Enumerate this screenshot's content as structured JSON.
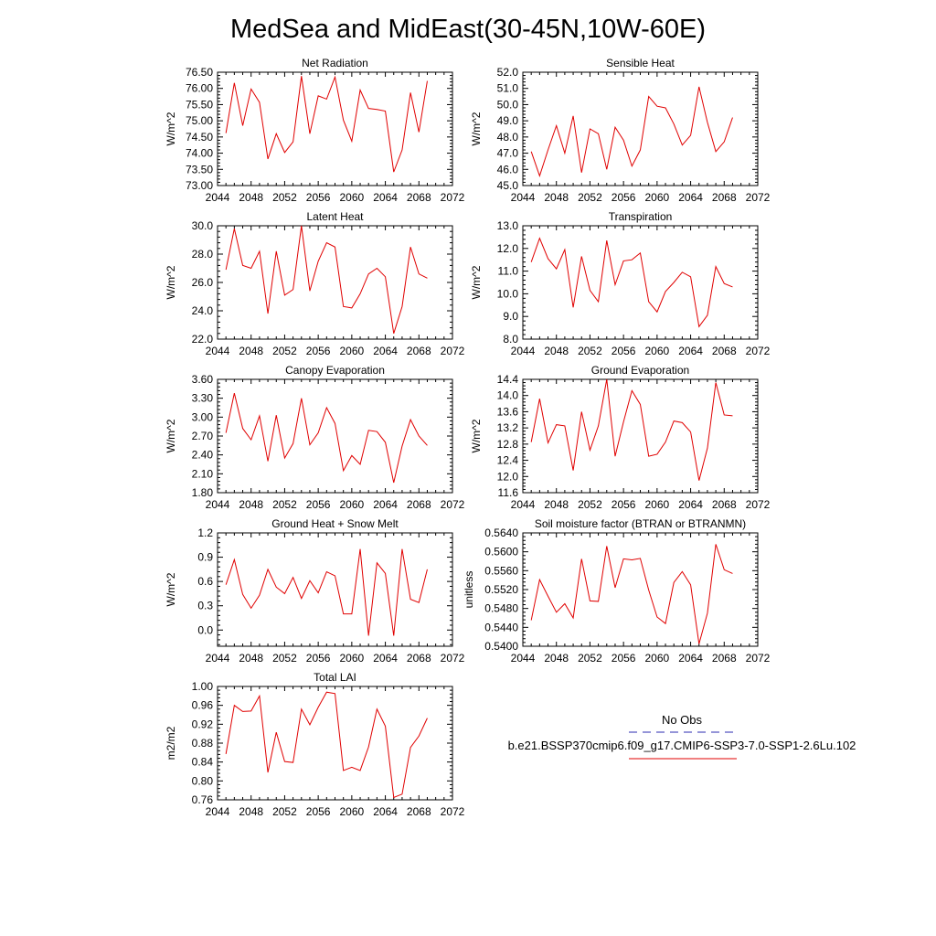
{
  "figure": {
    "title": "MedSea and MidEast(30-45N,10W-60E)"
  },
  "legend": {
    "obs_label": "No Obs",
    "model_label": "b.e21.BSSP370cmip6.f09_g17.CMIP6-SSP3-7.0-SSP1-2.6Lu.102",
    "obs_color": "#2b2bb0",
    "model_color": "#e00000"
  },
  "chart_data": [
    {
      "type": "line",
      "title": "Net Radiation",
      "ylabel": "W/m^2",
      "x": [
        2045,
        2046,
        2047,
        2048,
        2049,
        2050,
        2051,
        2052,
        2053,
        2054,
        2055,
        2056,
        2057,
        2058,
        2059,
        2060,
        2061,
        2062,
        2063,
        2064,
        2065,
        2066,
        2067,
        2068,
        2069
      ],
      "xlim": [
        2044,
        2072
      ],
      "xticks": [
        "2044",
        "2048",
        "2052",
        "2056",
        "2060",
        "2064",
        "2068",
        "2072"
      ],
      "ylim": [
        73.0,
        76.5
      ],
      "yticks": [
        "73.00",
        "73.50",
        "74.00",
        "74.50",
        "75.00",
        "75.50",
        "76.00",
        "76.50"
      ],
      "series": [
        {
          "values": [
            74.62,
            76.17,
            74.85,
            75.98,
            75.57,
            73.82,
            74.6,
            74.02,
            74.35,
            76.38,
            74.6,
            75.77,
            75.67,
            76.35,
            75.02,
            74.37,
            75.95,
            75.38,
            75.35,
            75.3,
            73.42,
            74.1,
            75.87,
            74.65,
            76.23
          ]
        }
      ]
    },
    {
      "type": "line",
      "title": "Sensible Heat",
      "ylabel": "W/m^2",
      "x": [
        2045,
        2046,
        2047,
        2048,
        2049,
        2050,
        2051,
        2052,
        2053,
        2054,
        2055,
        2056,
        2057,
        2058,
        2059,
        2060,
        2061,
        2062,
        2063,
        2064,
        2065,
        2066,
        2067,
        2068,
        2069
      ],
      "xlim": [
        2044,
        2072
      ],
      "xticks": [
        "2044",
        "2048",
        "2052",
        "2056",
        "2060",
        "2064",
        "2068",
        "2072"
      ],
      "ylim": [
        45.0,
        52.0
      ],
      "yticks": [
        "45.0",
        "46.0",
        "47.0",
        "48.0",
        "49.0",
        "50.0",
        "51.0",
        "52.0"
      ],
      "series": [
        {
          "values": [
            47.1,
            45.6,
            47.2,
            48.7,
            47.0,
            49.3,
            45.8,
            48.5,
            48.2,
            46.0,
            48.6,
            47.8,
            46.2,
            47.2,
            50.5,
            49.9,
            49.8,
            48.8,
            47.5,
            48.1,
            51.1,
            48.9,
            47.1,
            47.7,
            49.2
          ]
        }
      ]
    },
    {
      "type": "line",
      "title": "Latent Heat",
      "ylabel": "W/m^2",
      "x": [
        2045,
        2046,
        2047,
        2048,
        2049,
        2050,
        2051,
        2052,
        2053,
        2054,
        2055,
        2056,
        2057,
        2058,
        2059,
        2060,
        2061,
        2062,
        2063,
        2064,
        2065,
        2066,
        2067,
        2068,
        2069
      ],
      "xlim": [
        2044,
        2072
      ],
      "xticks": [
        "2044",
        "2048",
        "2052",
        "2056",
        "2060",
        "2064",
        "2068",
        "2072"
      ],
      "ylim": [
        22.0,
        30.0
      ],
      "yticks": [
        "22.0",
        "24.0",
        "26.0",
        "28.0",
        "30.0"
      ],
      "series": [
        {
          "values": [
            26.9,
            29.8,
            27.2,
            27.0,
            28.2,
            23.8,
            28.2,
            25.1,
            25.5,
            30.0,
            25.4,
            27.5,
            28.8,
            28.5,
            24.3,
            24.2,
            25.2,
            26.6,
            27.0,
            26.4,
            22.4,
            24.3,
            28.5,
            26.6,
            26.3
          ]
        }
      ]
    },
    {
      "type": "line",
      "title": "Transpiration",
      "ylabel": "W/m^2",
      "x": [
        2045,
        2046,
        2047,
        2048,
        2049,
        2050,
        2051,
        2052,
        2053,
        2054,
        2055,
        2056,
        2057,
        2058,
        2059,
        2060,
        2061,
        2062,
        2063,
        2064,
        2065,
        2066,
        2067,
        2068,
        2069
      ],
      "xlim": [
        2044,
        2072
      ],
      "xticks": [
        "2044",
        "2048",
        "2052",
        "2056",
        "2060",
        "2064",
        "2068",
        "2072"
      ],
      "ylim": [
        8.0,
        13.0
      ],
      "yticks": [
        "8.0",
        "9.0",
        "10.0",
        "11.0",
        "12.0",
        "13.0"
      ],
      "series": [
        {
          "values": [
            11.4,
            12.45,
            11.55,
            11.1,
            11.95,
            9.4,
            11.65,
            10.15,
            9.65,
            12.35,
            10.4,
            11.45,
            11.5,
            11.8,
            9.65,
            9.2,
            10.1,
            10.5,
            10.95,
            10.75,
            8.55,
            9.05,
            11.2,
            10.45,
            10.3
          ]
        }
      ]
    },
    {
      "type": "line",
      "title": "Canopy Evaporation",
      "ylabel": "W/m^2",
      "x": [
        2045,
        2046,
        2047,
        2048,
        2049,
        2050,
        2051,
        2052,
        2053,
        2054,
        2055,
        2056,
        2057,
        2058,
        2059,
        2060,
        2061,
        2062,
        2063,
        2064,
        2065,
        2066,
        2067,
        2068,
        2069
      ],
      "xlim": [
        2044,
        2072
      ],
      "xticks": [
        "2044",
        "2048",
        "2052",
        "2056",
        "2060",
        "2064",
        "2068",
        "2072"
      ],
      "ylim": [
        1.8,
        3.6
      ],
      "yticks": [
        "1.80",
        "2.10",
        "2.40",
        "2.70",
        "3.00",
        "3.30",
        "3.60"
      ],
      "series": [
        {
          "values": [
            2.75,
            3.38,
            2.82,
            2.64,
            3.02,
            2.3,
            3.03,
            2.35,
            2.58,
            3.3,
            2.56,
            2.75,
            3.15,
            2.9,
            2.15,
            2.39,
            2.25,
            2.79,
            2.77,
            2.6,
            1.96,
            2.54,
            2.96,
            2.7,
            2.55
          ]
        }
      ]
    },
    {
      "type": "line",
      "title": "Ground Evaporation",
      "ylabel": "W/m^2",
      "x": [
        2045,
        2046,
        2047,
        2048,
        2049,
        2050,
        2051,
        2052,
        2053,
        2054,
        2055,
        2056,
        2057,
        2058,
        2059,
        2060,
        2061,
        2062,
        2063,
        2064,
        2065,
        2066,
        2067,
        2068,
        2069
      ],
      "xlim": [
        2044,
        2072
      ],
      "xticks": [
        "2044",
        "2048",
        "2052",
        "2056",
        "2060",
        "2064",
        "2068",
        "2072"
      ],
      "ylim": [
        11.6,
        14.4
      ],
      "yticks": [
        "11.6",
        "12.0",
        "12.4",
        "12.8",
        "13.2",
        "13.6",
        "14.0",
        "14.4"
      ],
      "series": [
        {
          "values": [
            12.85,
            13.92,
            12.83,
            13.28,
            13.25,
            12.15,
            13.6,
            12.65,
            13.25,
            14.4,
            12.5,
            13.35,
            14.12,
            13.78,
            12.5,
            12.55,
            12.85,
            13.37,
            13.33,
            13.1,
            11.9,
            12.7,
            14.32,
            13.52,
            13.5
          ]
        }
      ]
    },
    {
      "type": "line",
      "title": "Ground Heat + Snow Melt",
      "ylabel": "W/m^2",
      "x": [
        2045,
        2046,
        2047,
        2048,
        2049,
        2050,
        2051,
        2052,
        2053,
        2054,
        2055,
        2056,
        2057,
        2058,
        2059,
        2060,
        2061,
        2062,
        2063,
        2064,
        2065,
        2066,
        2067,
        2068,
        2069
      ],
      "xlim": [
        2044,
        2072
      ],
      "xticks": [
        "2044",
        "2048",
        "2052",
        "2056",
        "2060",
        "2064",
        "2068",
        "2072"
      ],
      "ylim": [
        -0.2,
        1.2
      ],
      "yticks": [
        "0.0",
        "0.3",
        "0.6",
        "0.9",
        "1.2"
      ],
      "series": [
        {
          "values": [
            0.56,
            0.87,
            0.44,
            0.27,
            0.43,
            0.75,
            0.53,
            0.45,
            0.65,
            0.39,
            0.61,
            0.46,
            0.72,
            0.67,
            0.2,
            0.2,
            1.0,
            -0.07,
            0.83,
            0.7,
            -0.07,
            1.0,
            0.38,
            0.34,
            0.75
          ]
        }
      ]
    },
    {
      "type": "line",
      "title": "Soil moisture factor (BTRAN or BTRANMN)",
      "ylabel": "unitless",
      "x": [
        2045,
        2046,
        2047,
        2048,
        2049,
        2050,
        2051,
        2052,
        2053,
        2054,
        2055,
        2056,
        2057,
        2058,
        2059,
        2060,
        2061,
        2062,
        2063,
        2064,
        2065,
        2066,
        2067,
        2068,
        2069
      ],
      "xlim": [
        2044,
        2072
      ],
      "xticks": [
        "2044",
        "2048",
        "2052",
        "2056",
        "2060",
        "2064",
        "2068",
        "2072"
      ],
      "ylim": [
        0.54,
        0.564
      ],
      "yticks": [
        "0.5400",
        "0.5440",
        "0.5480",
        "0.5520",
        "0.5560",
        "0.5600",
        "0.5640"
      ],
      "series": [
        {
          "values": [
            0.5455,
            0.5541,
            0.5506,
            0.5472,
            0.549,
            0.546,
            0.5585,
            0.5496,
            0.5495,
            0.5612,
            0.5524,
            0.5585,
            0.5583,
            0.5586,
            0.5519,
            0.5462,
            0.5448,
            0.5535,
            0.5558,
            0.553,
            0.5405,
            0.547,
            0.5616,
            0.5562,
            0.5554
          ]
        }
      ]
    },
    {
      "type": "line",
      "title": "Total LAI",
      "ylabel": "m2/m2",
      "x": [
        2045,
        2046,
        2047,
        2048,
        2049,
        2050,
        2051,
        2052,
        2053,
        2054,
        2055,
        2056,
        2057,
        2058,
        2059,
        2060,
        2061,
        2062,
        2063,
        2064,
        2065,
        2066,
        2067,
        2068,
        2069
      ],
      "xlim": [
        2044,
        2072
      ],
      "xticks": [
        "2044",
        "2048",
        "2052",
        "2056",
        "2060",
        "2064",
        "2068",
        "2072"
      ],
      "ylim": [
        0.76,
        1.0
      ],
      "yticks": [
        "0.76",
        "0.80",
        "0.84",
        "0.88",
        "0.92",
        "0.96",
        "1.00"
      ],
      "series": [
        {
          "values": [
            0.857,
            0.96,
            0.947,
            0.948,
            0.98,
            0.818,
            0.903,
            0.841,
            0.839,
            0.952,
            0.919,
            0.956,
            0.988,
            0.985,
            0.822,
            0.829,
            0.822,
            0.872,
            0.952,
            0.916,
            0.765,
            0.772,
            0.871,
            0.895,
            0.933
          ]
        }
      ]
    }
  ]
}
